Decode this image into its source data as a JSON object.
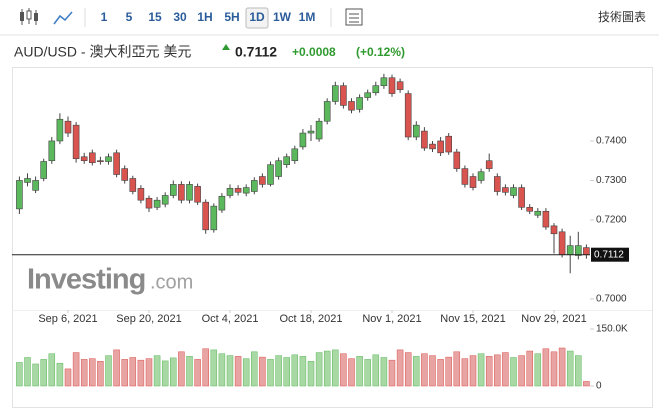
{
  "toolbar": {
    "intervals": [
      "1",
      "5",
      "15",
      "30",
      "1H",
      "5H",
      "1D",
      "1W",
      "1M"
    ],
    "active": "1D",
    "right_link": "技術圖表"
  },
  "header": {
    "title": "AUD/USD - 澳大利亞元 美元",
    "price": "0.7112",
    "change": "+0.0008",
    "change_pct": "(+0.12%)"
  },
  "watermark": {
    "brand": "Investing",
    "suffix": ".com"
  },
  "chart_data": {
    "type": "candlestick",
    "open": [
      0.7228,
      0.7295,
      0.7275,
      0.7305,
      0.735,
      0.74,
      0.745,
      0.744,
      0.736,
      0.737,
      0.735,
      0.7348,
      0.737,
      0.733,
      0.7305,
      0.728,
      0.7255,
      0.7232,
      0.724,
      0.7262,
      0.729,
      0.725,
      0.7285,
      0.7245,
      0.7175,
      0.7225,
      0.7262,
      0.728,
      0.7268,
      0.7272,
      0.731,
      0.729,
      0.731,
      0.734,
      0.735,
      0.7385,
      0.742,
      0.7405,
      0.745,
      0.75,
      0.754,
      0.75,
      0.748,
      0.751,
      0.7522,
      0.754,
      0.756,
      0.755,
      0.752,
      0.741,
      0.7425,
      0.7392,
      0.74,
      0.7412,
      0.7372,
      0.733,
      0.731,
      0.73,
      0.735,
      0.731,
      0.7282,
      0.7262,
      0.7282,
      0.7232,
      0.7212,
      0.7222,
      0.7185,
      0.717,
      0.7112,
      0.711,
      0.713
    ],
    "high": [
      0.731,
      0.7318,
      0.731,
      0.7355,
      0.741,
      0.747,
      0.7462,
      0.7448,
      0.737,
      0.7378,
      0.736,
      0.7368,
      0.7378,
      0.7338,
      0.7312,
      0.7288,
      0.7262,
      0.7258,
      0.727,
      0.73,
      0.7298,
      0.7298,
      0.7292,
      0.7252,
      0.7242,
      0.7268,
      0.729,
      0.7288,
      0.729,
      0.7308,
      0.7318,
      0.7348,
      0.7358,
      0.7368,
      0.7388,
      0.743,
      0.744,
      0.7458,
      0.7508,
      0.755,
      0.7548,
      0.7508,
      0.7518,
      0.753,
      0.755,
      0.757,
      0.7568,
      0.7558,
      0.7528,
      0.745,
      0.7435,
      0.74,
      0.741,
      0.742,
      0.738,
      0.7338,
      0.7318,
      0.733,
      0.7368,
      0.7318,
      0.729,
      0.729,
      0.729,
      0.724,
      0.723,
      0.723,
      0.7192,
      0.7178,
      0.716,
      0.717,
      0.7138
    ],
    "low": [
      0.7215,
      0.7285,
      0.7268,
      0.7298,
      0.7342,
      0.7392,
      0.741,
      0.7345,
      0.7342,
      0.7338,
      0.734,
      0.734,
      0.7308,
      0.7292,
      0.7265,
      0.7242,
      0.722,
      0.7225,
      0.7232,
      0.7255,
      0.7242,
      0.7242,
      0.7238,
      0.7165,
      0.7168,
      0.7218,
      0.7255,
      0.7262,
      0.726,
      0.7265,
      0.7282,
      0.7285,
      0.7302,
      0.7332,
      0.7342,
      0.7378,
      0.74,
      0.7398,
      0.7442,
      0.7492,
      0.7482,
      0.747,
      0.7472,
      0.7502,
      0.7515,
      0.7532,
      0.7512,
      0.7522,
      0.7402,
      0.7402,
      0.7375,
      0.7372,
      0.7362,
      0.7365,
      0.7322,
      0.7282,
      0.7275,
      0.7292,
      0.7322,
      0.7262,
      0.7262,
      0.7255,
      0.7225,
      0.7215,
      0.7205,
      0.7175,
      0.7115,
      0.7105,
      0.7065,
      0.71,
      0.7102
    ],
    "close": [
      0.73,
      0.7305,
      0.73,
      0.7348,
      0.74,
      0.7455,
      0.742,
      0.7355,
      0.735,
      0.7345,
      0.7348,
      0.736,
      0.7315,
      0.73,
      0.7272,
      0.725,
      0.723,
      0.725,
      0.7262,
      0.729,
      0.725,
      0.729,
      0.7245,
      0.7175,
      0.7235,
      0.726,
      0.728,
      0.727,
      0.7282,
      0.73,
      0.729,
      0.734,
      0.735,
      0.736,
      0.738,
      0.742,
      0.7425,
      0.745,
      0.75,
      0.754,
      0.749,
      0.7478,
      0.751,
      0.7522,
      0.754,
      0.756,
      0.752,
      0.753,
      0.741,
      0.744,
      0.7382,
      0.738,
      0.737,
      0.7372,
      0.733,
      0.729,
      0.7282,
      0.7322,
      0.733,
      0.7272,
      0.727,
      0.7282,
      0.7232,
      0.7222,
      0.7222,
      0.7182,
      0.7165,
      0.7112,
      0.7135,
      0.7135,
      0.7112
    ],
    "volume": [
      62000,
      75000,
      58000,
      70000,
      85000,
      60000,
      45000,
      88000,
      70000,
      72000,
      65000,
      80000,
      95000,
      70000,
      75000,
      68000,
      72000,
      80000,
      66000,
      74000,
      90000,
      78000,
      70000,
      98000,
      95000,
      85000,
      80000,
      78000,
      72000,
      90000,
      76000,
      70000,
      80000,
      75000,
      82000,
      78000,
      65000,
      88000,
      92000,
      95000,
      85000,
      72000,
      78000,
      70000,
      82000,
      75000,
      68000,
      95000,
      88000,
      78000,
      85000,
      80000,
      70000,
      76000,
      90000,
      72000,
      80000,
      85000,
      78000,
      82000,
      88000,
      75000,
      80000,
      92000,
      85000,
      98000,
      90000,
      100000,
      92000,
      80000,
      12000
    ],
    "up_color": "#5cb85c",
    "down_color": "#d9534f",
    "volume_up_color": "#a8d8a3",
    "volume_down_color": "#e8a3a3",
    "ylim": [
      0.6972,
      0.7567
    ],
    "yticks": [
      {
        "value": 0.7,
        "label": "0.7000"
      },
      {
        "value": 0.72,
        "label": "0.7200"
      },
      {
        "value": 0.73,
        "label": "0.7300"
      },
      {
        "value": 0.74,
        "label": "0.7400"
      }
    ],
    "y2lim": [
      0,
      150000
    ],
    "y2ticks": [
      0,
      {
        "value": 150000,
        "label": "150.0K"
      }
    ],
    "xticks": [
      {
        "value": 6,
        "label": "Sep 6, 2021"
      },
      {
        "value": 16,
        "label": "Sep 20, 2021"
      },
      {
        "value": 26,
        "label": "Oct 4, 2021"
      },
      {
        "value": 36,
        "label": "Oct 18, 2021"
      },
      {
        "value": 46,
        "label": "Nov 1, 2021"
      },
      {
        "value": 56,
        "label": "Nov 15, 2021"
      },
      {
        "value": 66,
        "label": "Nov 29, 2021"
      }
    ],
    "last_price": 0.7112
  }
}
